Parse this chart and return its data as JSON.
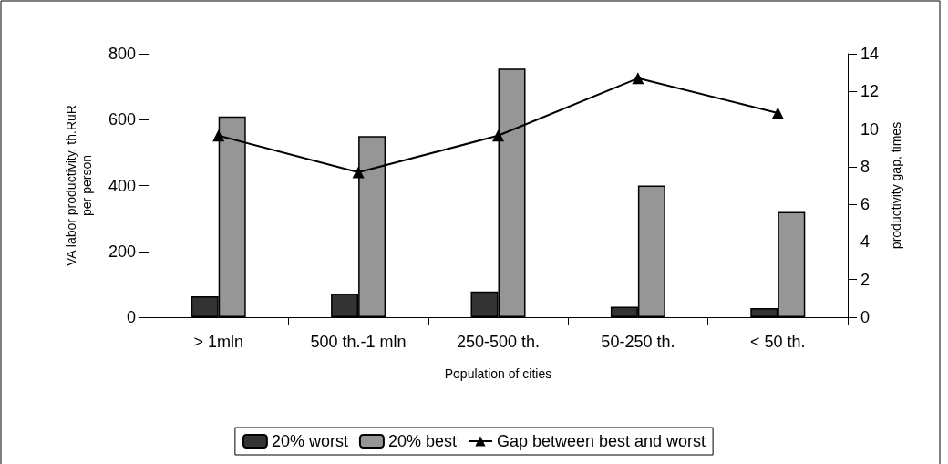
{
  "chart_data": {
    "type": "bar",
    "xlabel": "Population of cities",
    "ylabel": "VA labor productivity, th.RuR\nper person",
    "y2label": "productivity gap, times",
    "categories": [
      "> 1mln",
      "500 th.-1 mln",
      "250-500 th.",
      "50-250 th.",
      "< 50 th."
    ],
    "series": [
      {
        "name": "20% worst",
        "color": "#333333",
        "values": [
          64,
          71,
          78,
          32,
          28
        ]
      },
      {
        "name": "20% best",
        "color": "#969696",
        "values": [
          610,
          550,
          755,
          400,
          320
        ]
      },
      {
        "name": "Gap between best and worst",
        "type": "line",
        "axis": "y2",
        "color": "#000000",
        "marker": "triangle",
        "values": [
          9.65,
          7.7,
          9.65,
          12.7,
          10.85
        ]
      }
    ],
    "ylim": [
      0,
      800
    ],
    "yticks": [
      0,
      200,
      400,
      600,
      800
    ],
    "y2lim": [
      0,
      14
    ],
    "y2ticks": [
      0,
      2,
      4,
      6,
      8,
      10,
      12,
      14
    ],
    "grid": false,
    "legend": "bottom"
  }
}
